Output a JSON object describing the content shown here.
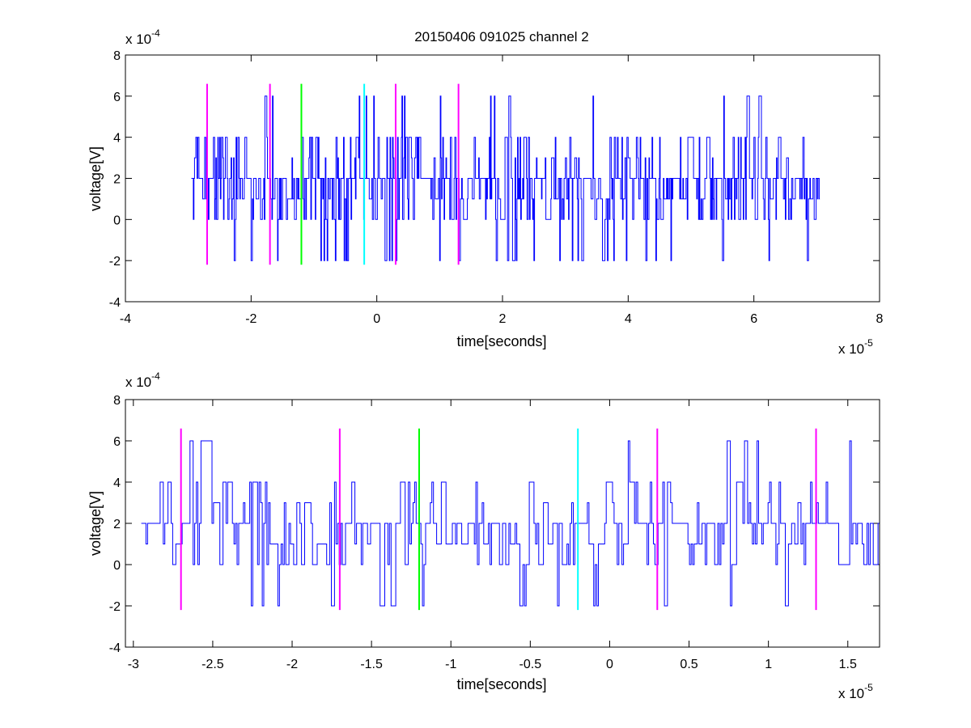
{
  "chart_data": [
    {
      "type": "line",
      "title": "20150406 091025 channel 2",
      "xlabel": "time[seconds]",
      "ylabel": "voltage[V]",
      "x_exponent_label": "x 10",
      "x_exponent": "-5",
      "y_exponent_label": "x 10",
      "y_exponent": "-4",
      "xlim": [
        -4,
        8
      ],
      "ylim": [
        -4,
        8
      ],
      "x_ticks": [
        "-4",
        "-2",
        "0",
        "2",
        "4",
        "6",
        "8"
      ],
      "y_ticks": [
        "-4",
        "-2",
        "0",
        "2",
        "4",
        "6",
        "8"
      ],
      "grid": false,
      "signal_range": [
        -2.95,
        7.05
      ],
      "signal_color": "#0000ff",
      "markers": [
        {
          "x": -2.7,
          "color": "#ff00ff"
        },
        {
          "x": -1.7,
          "color": "#ff00ff"
        },
        {
          "x": -1.2,
          "color": "#00ff00"
        },
        {
          "x": -0.2,
          "color": "#00ffff"
        },
        {
          "x": 0.3,
          "color": "#ff00ff"
        },
        {
          "x": 1.3,
          "color": "#ff00ff"
        }
      ],
      "marker_range": [
        -2.2,
        6.6
      ]
    },
    {
      "type": "line",
      "title": "",
      "xlabel": "time[seconds]",
      "ylabel": "voltage[V]",
      "x_exponent_label": "x 10",
      "x_exponent": "-5",
      "y_exponent_label": "x 10",
      "y_exponent": "-4",
      "xlim": [
        -3.05,
        1.7
      ],
      "ylim": [
        -4,
        8
      ],
      "x_ticks": [
        "-3",
        "-2.5",
        "-2",
        "-1.5",
        "-1",
        "-0.5",
        "0",
        "0.5",
        "1",
        "1.5"
      ],
      "x_tick_values": [
        -3,
        -2.5,
        -2,
        -1.5,
        -1,
        -0.5,
        0,
        0.5,
        1,
        1.5
      ],
      "y_ticks": [
        "-4",
        "-2",
        "0",
        "2",
        "4",
        "6",
        "8"
      ],
      "grid": false,
      "signal_range": [
        -2.95,
        1.7
      ],
      "signal_color": "#0000ff",
      "markers": [
        {
          "x": -2.7,
          "color": "#ff00ff"
        },
        {
          "x": -1.7,
          "color": "#ff00ff"
        },
        {
          "x": -1.2,
          "color": "#00ff00"
        },
        {
          "x": -0.2,
          "color": "#00ffff"
        },
        {
          "x": 0.3,
          "color": "#ff00ff"
        },
        {
          "x": 1.3,
          "color": "#ff00ff"
        }
      ],
      "marker_range": [
        -2.2,
        6.6
      ]
    }
  ]
}
